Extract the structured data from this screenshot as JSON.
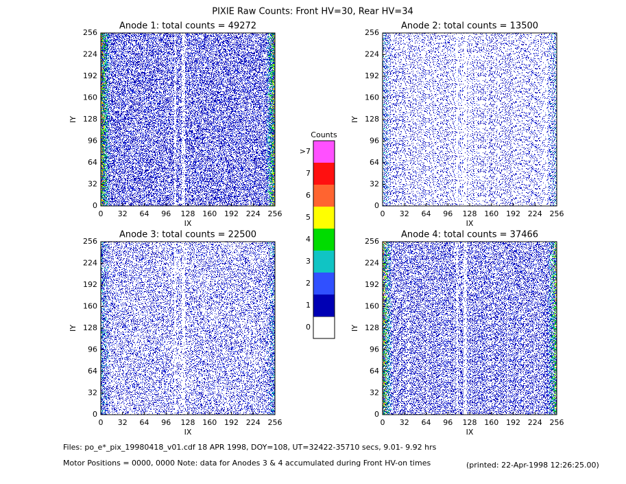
{
  "title": "PIXIE Raw Counts:  Front HV=30, Rear HV=34",
  "chart_data": [
    {
      "type": "heatmap",
      "title": "Anode 1: total counts = 49272",
      "xlabel": "IX",
      "ylabel": "IY",
      "xlim": [
        0,
        256
      ],
      "ylim": [
        0,
        256
      ],
      "xticks": [
        0,
        32,
        64,
        96,
        128,
        160,
        192,
        224,
        256
      ],
      "yticks": [
        0,
        32,
        64,
        96,
        128,
        160,
        192,
        224,
        256
      ]
    },
    {
      "type": "heatmap",
      "title": "Anode 2: total counts = 13500",
      "xlabel": "IX",
      "ylabel": "IY",
      "xlim": [
        0,
        256
      ],
      "ylim": [
        0,
        256
      ],
      "xticks": [
        0,
        32,
        64,
        96,
        128,
        160,
        192,
        224,
        256
      ],
      "yticks": [
        0,
        32,
        64,
        96,
        128,
        160,
        192,
        224,
        256
      ]
    },
    {
      "type": "heatmap",
      "title": "Anode 3: total counts = 22500",
      "xlabel": "IX",
      "ylabel": "IY",
      "xlim": [
        0,
        256
      ],
      "ylim": [
        0,
        256
      ],
      "xticks": [
        0,
        32,
        64,
        96,
        128,
        160,
        192,
        224,
        256
      ],
      "yticks": [
        0,
        32,
        64,
        96,
        128,
        160,
        192,
        224,
        256
      ]
    },
    {
      "type": "heatmap",
      "title": "Anode 4: total counts = 37466",
      "xlabel": "IX",
      "ylabel": "IY",
      "xlim": [
        0,
        256
      ],
      "ylim": [
        0,
        256
      ],
      "xticks": [
        0,
        32,
        64,
        96,
        128,
        160,
        192,
        224,
        256
      ],
      "yticks": [
        0,
        32,
        64,
        96,
        128,
        160,
        192,
        224,
        256
      ]
    }
  ],
  "colorbar": {
    "title": "Counts",
    "labels": [
      "0",
      "1",
      "2",
      "3",
      "4",
      "5",
      "6",
      "7",
      ">7"
    ],
    "colors": [
      "#ffffff",
      "#0000b4",
      "#3050ff",
      "#10c4c4",
      "#00dc00",
      "#ffff00",
      "#ff6430",
      "#ff1010",
      "#ff50ff"
    ]
  },
  "footer": {
    "files": "Files: po_e*_pix_19980418_v01.cdf     18 APR 1998, DOY=108, UT=32422-35710 secs,  9.01- 9.92 hrs",
    "motor": "Motor Positions = 0000, 0000   Note: data for Anodes 3 & 4 accumulated during Front HV-on times",
    "printed": "(printed: 22-Apr-1998 12:26:25.00)"
  }
}
